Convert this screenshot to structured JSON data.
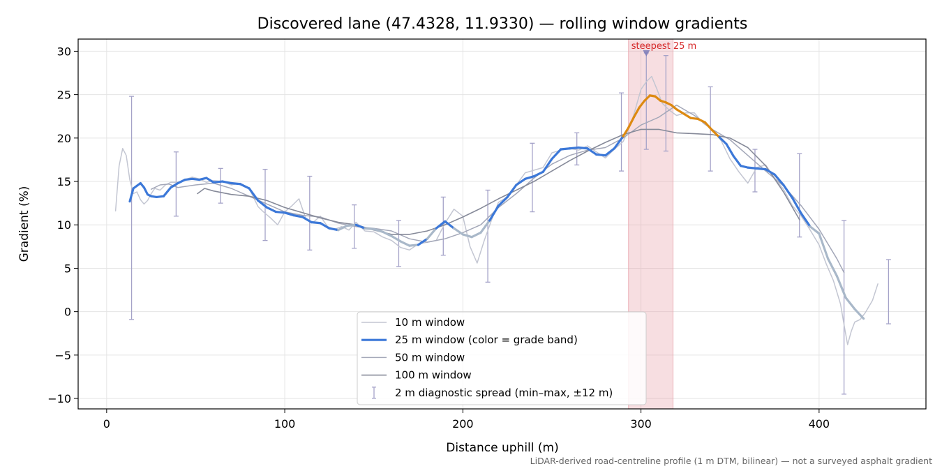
{
  "chart_data": {
    "type": "line",
    "title": "Discovered lane (47.4328, 11.9330) — rolling window gradients",
    "xlabel": "Distance uphill (m)",
    "ylabel": "Gradient (%)",
    "xlim": [
      -16,
      460
    ],
    "ylim": [
      -11.2,
      31.4
    ],
    "xticks": [
      0,
      100,
      200,
      300,
      400
    ],
    "yticks": [
      -10,
      -5,
      0,
      5,
      10,
      15,
      20,
      25,
      30
    ],
    "ytick_labels": [
      "−10",
      "−5",
      "0",
      "5",
      "10",
      "15",
      "20",
      "25",
      "30"
    ],
    "grid": true,
    "legend_position": "lower center",
    "note": "LiDAR-derived road-centreline profile (1 m DTM, bilinear) — not a surveyed asphalt gradient",
    "highlight": {
      "x_start": 293,
      "x_end": 318,
      "label": "steepest 25 m",
      "peak_x": 303,
      "peak_y": 29.8,
      "color": "#e8a0a8"
    },
    "colors": {
      "w10": "#c3c6d2",
      "w25_band_low": "#3c78d8",
      "w25_band_high": "#dd8a12",
      "w25_band_mid": "#a9b8c9",
      "w50": "#a3a7b8",
      "w100": "#868a99",
      "errorbar": "#a4a2c8"
    },
    "series": [
      {
        "name": "10 m window",
        "key": "w10",
        "x": [
          5,
          7,
          9,
          11,
          13,
          15,
          17,
          19,
          21,
          23,
          25,
          27,
          30,
          33,
          36,
          40,
          44,
          48,
          52,
          56,
          60,
          65,
          70,
          75,
          80,
          85,
          88,
          92,
          96,
          100,
          104,
          108,
          112,
          116,
          120,
          124,
          128,
          132,
          136,
          140,
          145,
          150,
          155,
          160,
          165,
          170,
          175,
          180,
          185,
          190,
          195,
          200,
          204,
          208,
          212,
          216,
          220,
          225,
          230,
          235,
          240,
          245,
          250,
          255,
          260,
          265,
          270,
          275,
          280,
          285,
          290,
          295,
          300,
          303,
          306,
          309,
          312,
          316,
          320,
          325,
          330,
          335,
          340,
          345,
          350,
          355,
          360,
          365,
          370,
          375,
          380,
          385,
          390,
          395,
          400,
          404,
          408,
          412,
          414,
          416,
          418,
          420,
          423,
          426,
          430,
          433
        ],
        "y": [
          11.6,
          16.8,
          18.8,
          18.0,
          15.2,
          13.6,
          13.8,
          12.9,
          12.4,
          12.8,
          13.6,
          14.2,
          14.0,
          14.6,
          14.9,
          14.9,
          15.2,
          15.5,
          15.3,
          14.9,
          15.1,
          15.0,
          14.6,
          14.8,
          14.2,
          12.1,
          11.5,
          10.8,
          10.0,
          11.5,
          12.2,
          13.0,
          10.6,
          10.3,
          11.0,
          9.8,
          9.5,
          9.8,
          9.4,
          10.3,
          9.3,
          9.2,
          8.6,
          8.2,
          7.4,
          7.1,
          7.8,
          8.0,
          8.2,
          10.2,
          11.8,
          11.0,
          7.5,
          5.6,
          8.2,
          10.5,
          12.6,
          13.2,
          14.6,
          16.0,
          16.3,
          16.6,
          18.3,
          18.6,
          18.8,
          18.6,
          19.1,
          18.4,
          17.7,
          18.7,
          19.6,
          22.0,
          25.6,
          26.5,
          27.1,
          25.6,
          24.0,
          23.2,
          22.6,
          22.9,
          22.9,
          21.7,
          21.0,
          19.7,
          17.6,
          16.1,
          14.8,
          16.6,
          16.9,
          15.4,
          14.1,
          12.2,
          11.0,
          9.4,
          7.7,
          5.5,
          3.6,
          0.9,
          -1.5,
          -3.8,
          -2.3,
          -1.2,
          -0.9,
          -0.1,
          1.3,
          3.2
        ]
      },
      {
        "name": "25 m window (color = grade band)",
        "key": "w25",
        "x": [
          13,
          15,
          17,
          19,
          21,
          23,
          25,
          28,
          32,
          36,
          40,
          44,
          48,
          52,
          56,
          60,
          65,
          70,
          75,
          80,
          85,
          90,
          95,
          100,
          105,
          110,
          115,
          120,
          125,
          130,
          135,
          140,
          145,
          150,
          155,
          160,
          165,
          170,
          175,
          180,
          185,
          190,
          195,
          200,
          205,
          210,
          215,
          220,
          225,
          230,
          235,
          240,
          245,
          250,
          255,
          260,
          265,
          270,
          275,
          280,
          285,
          290,
          293,
          296,
          299,
          302,
          305,
          308,
          311,
          314,
          317,
          320,
          324,
          328,
          332,
          336,
          340,
          344,
          348,
          352,
          356,
          360,
          365,
          370,
          375,
          380,
          385,
          390,
          395,
          400,
          405,
          410,
          415,
          420,
          425
        ],
        "y": [
          12.7,
          14.2,
          14.5,
          14.8,
          14.3,
          13.5,
          13.3,
          13.2,
          13.3,
          14.3,
          14.8,
          15.2,
          15.3,
          15.2,
          15.4,
          14.9,
          15.0,
          14.8,
          14.7,
          14.2,
          12.8,
          12.0,
          11.5,
          11.4,
          11.1,
          10.9,
          10.3,
          10.2,
          9.6,
          9.4,
          9.9,
          10.0,
          9.6,
          9.5,
          9.2,
          8.7,
          8.1,
          7.6,
          7.7,
          8.4,
          9.6,
          10.4,
          9.6,
          8.9,
          8.6,
          9.1,
          10.5,
          12.2,
          13.2,
          14.6,
          15.3,
          15.6,
          16.1,
          17.6,
          18.7,
          18.8,
          18.9,
          18.8,
          18.1,
          18.0,
          18.8,
          20.2,
          21.2,
          22.4,
          23.5,
          24.3,
          24.9,
          24.8,
          24.3,
          24.1,
          23.8,
          23.3,
          22.8,
          22.3,
          22.2,
          21.8,
          20.9,
          20.1,
          19.3,
          17.9,
          16.8,
          16.6,
          16.5,
          16.4,
          15.8,
          14.6,
          13.1,
          11.3,
          9.8,
          9.0,
          6.1,
          4.1,
          1.6,
          0.3,
          -0.8
        ],
        "band": [
          0,
          0,
          0,
          0,
          0,
          0,
          0,
          0,
          0,
          0,
          0,
          0,
          0,
          0,
          0,
          0,
          0,
          0,
          0,
          0,
          0,
          0,
          0,
          0,
          0,
          0,
          0,
          0,
          0,
          2,
          2,
          0,
          2,
          2,
          2,
          2,
          2,
          2,
          0,
          2,
          0,
          0,
          2,
          2,
          2,
          2,
          0,
          0,
          0,
          0,
          0,
          0,
          0,
          0,
          0,
          0,
          0,
          0,
          0,
          0,
          0,
          1,
          1,
          1,
          1,
          1,
          1,
          1,
          1,
          1,
          1,
          1,
          1,
          1,
          1,
          1,
          1,
          0,
          0,
          0,
          0,
          0,
          0,
          0,
          0,
          0,
          0,
          0,
          2,
          2,
          2,
          2,
          2,
          2,
          2
        ]
      },
      {
        "name": "50 m window",
        "key": "w50",
        "x": [
          25,
          30,
          35,
          40,
          50,
          60,
          70,
          80,
          90,
          100,
          110,
          120,
          130,
          140,
          150,
          160,
          170,
          180,
          190,
          200,
          210,
          220,
          230,
          240,
          250,
          260,
          270,
          280,
          290,
          300,
          310,
          320,
          330,
          340,
          350,
          360,
          370,
          380,
          390,
          400,
          410,
          414
        ],
        "y": [
          14.1,
          14.6,
          14.7,
          14.3,
          14.6,
          14.8,
          14.2,
          13.3,
          12.4,
          11.5,
          11.1,
          10.9,
          10.2,
          9.8,
          9.6,
          9.3,
          8.4,
          8.0,
          8.4,
          9.1,
          10.0,
          12.0,
          13.6,
          15.4,
          17.0,
          18.0,
          18.6,
          18.9,
          20.0,
          21.5,
          22.4,
          23.8,
          22.6,
          21.0,
          19.8,
          18.0,
          16.2,
          14.5,
          12.2,
          9.5,
          6.1,
          4.5
        ]
      },
      {
        "name": "100 m window",
        "key": "w100",
        "x": [
          51,
          55,
          60,
          70,
          80,
          90,
          100,
          110,
          120,
          130,
          140,
          150,
          160,
          170,
          180,
          190,
          200,
          210,
          220,
          230,
          240,
          250,
          260,
          270,
          280,
          290,
          300,
          310,
          320,
          330,
          340,
          350,
          360,
          370,
          380,
          389
        ],
        "y": [
          13.6,
          14.2,
          13.9,
          13.5,
          13.3,
          12.8,
          12.0,
          11.4,
          10.8,
          10.3,
          10.0,
          9.4,
          8.9,
          8.9,
          9.3,
          10.0,
          10.9,
          11.9,
          13.0,
          14.0,
          15.0,
          16.2,
          17.4,
          18.5,
          19.5,
          20.4,
          21.0,
          21.0,
          20.6,
          20.5,
          20.4,
          20.0,
          18.9,
          16.8,
          13.8,
          10.6
        ]
      },
      {
        "name": "2 m diagnostic spread (min–max, ±12 m)",
        "key": "errorbar",
        "x": [
          14,
          39,
          64,
          89,
          114,
          139,
          164,
          189,
          214,
          239,
          264,
          289,
          303,
          314,
          339,
          364,
          389,
          414,
          439
        ],
        "y": [
          12.0,
          14.7,
          14.5,
          12.4,
          11.4,
          9.8,
          7.8,
          9.8,
          8.7,
          15.4,
          18.8,
          20.7,
          29.8,
          24.0,
          21.1,
          16.2,
          13.4,
          0.5,
          2.3
        ],
        "ymin": [
          -0.9,
          11.0,
          12.5,
          8.2,
          7.1,
          7.3,
          5.2,
          6.5,
          3.4,
          11.5,
          16.9,
          16.2,
          18.7,
          18.5,
          16.2,
          13.8,
          8.6,
          -9.5,
          -1.4
        ],
        "ymax": [
          24.8,
          18.4,
          16.5,
          16.4,
          15.6,
          12.3,
          10.5,
          13.2,
          14.0,
          19.4,
          20.6,
          25.2,
          29.8,
          29.5,
          25.9,
          18.7,
          18.2,
          10.5,
          6.0
        ]
      }
    ]
  }
}
